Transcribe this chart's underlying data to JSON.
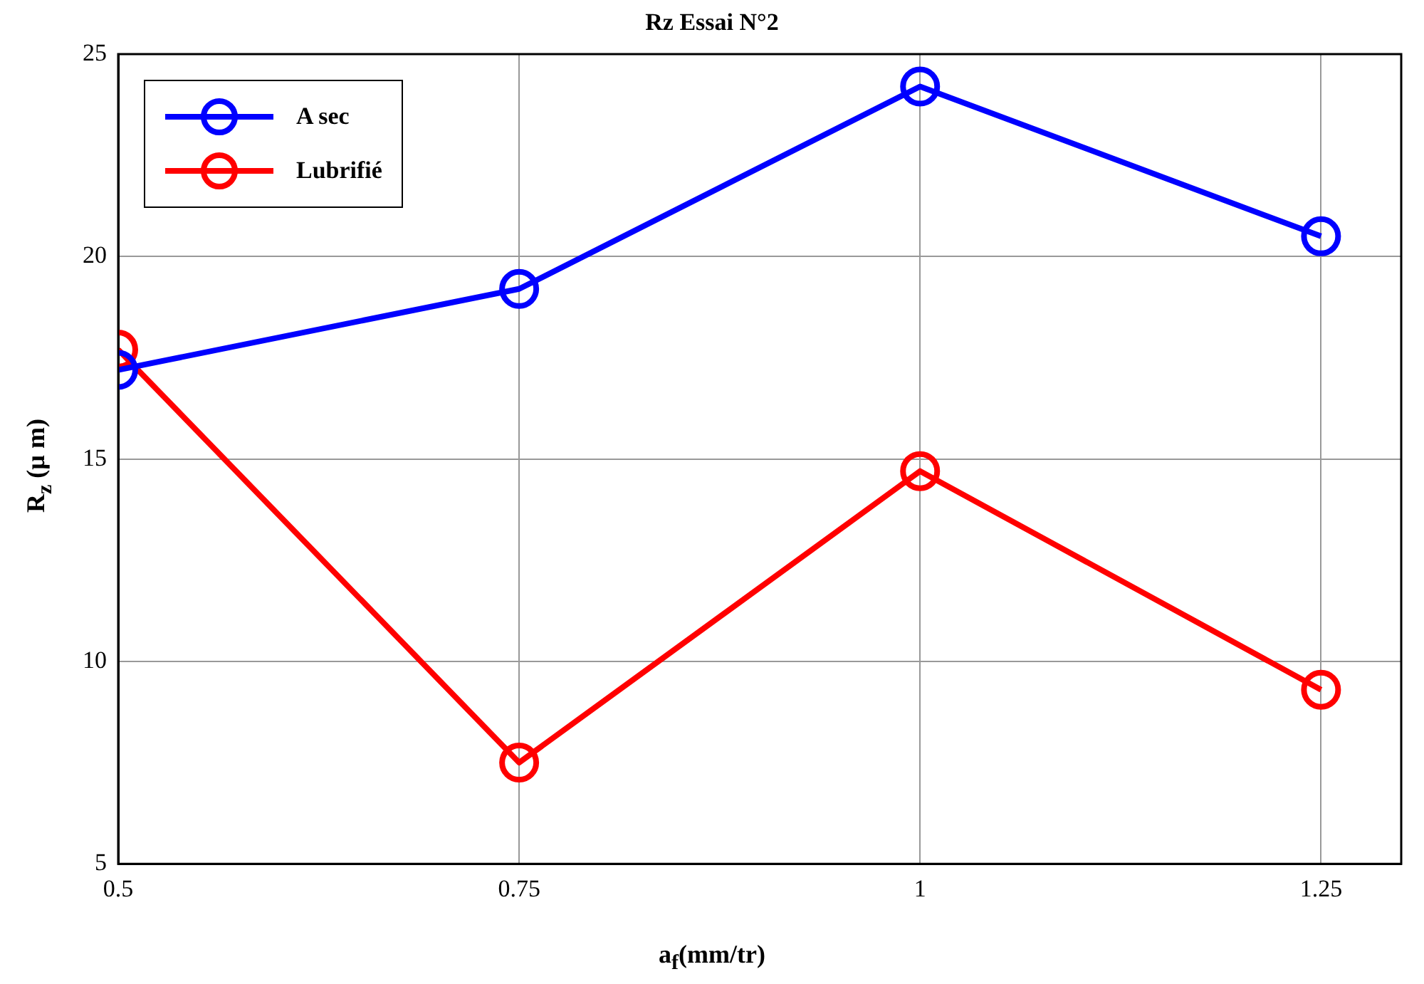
{
  "chart_data": {
    "type": "line",
    "title": "Rz Essai N°2",
    "xlabel": "a$_{f}$(mm/tr)",
    "ylabel": "R$_{z}$ (µ m)",
    "x": [
      0.5,
      0.75,
      1,
      1.25
    ],
    "series": [
      {
        "name": "A sec",
        "color": "#0000ff",
        "values": [
          17.2,
          19.2,
          24.2,
          20.5
        ]
      },
      {
        "name": "Lubrifié",
        "color": "#ff0000",
        "values": [
          17.7,
          7.5,
          14.7,
          9.3
        ]
      }
    ],
    "xlim": [
      0.5,
      1.3
    ],
    "xticks": [
      0.5,
      0.75,
      1,
      1.25
    ],
    "ylim": [
      5,
      25
    ],
    "yticks": [
      5,
      10,
      15,
      20,
      25
    ],
    "grid": true,
    "legend": "top left",
    "marker": "circle",
    "line_style": "solid"
  }
}
